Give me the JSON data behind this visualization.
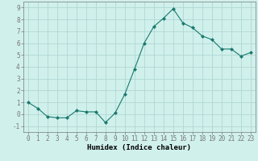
{
  "x": [
    0,
    1,
    2,
    3,
    4,
    5,
    6,
    7,
    8,
    9,
    10,
    11,
    12,
    13,
    14,
    15,
    16,
    17,
    18,
    19,
    20,
    21,
    22,
    23
  ],
  "y": [
    1.0,
    0.5,
    -0.2,
    -0.3,
    -0.3,
    0.3,
    0.2,
    0.2,
    -0.7,
    0.1,
    1.7,
    3.8,
    6.0,
    7.4,
    8.1,
    8.9,
    7.7,
    7.3,
    6.6,
    6.3,
    5.5,
    5.5,
    4.9,
    5.2
  ],
  "line_color": "#1a7a6e",
  "marker": "D",
  "marker_size": 2,
  "bg_color": "#d0f0ec",
  "grid_color": "#b0d8d4",
  "xlabel": "Humidex (Indice chaleur)",
  "xlim": [
    -0.5,
    23.5
  ],
  "ylim": [
    -1.5,
    9.5
  ],
  "xticks": [
    0,
    1,
    2,
    3,
    4,
    5,
    6,
    7,
    8,
    9,
    10,
    11,
    12,
    13,
    14,
    15,
    16,
    17,
    18,
    19,
    20,
    21,
    22,
    23
  ],
  "yticks": [
    -1,
    0,
    1,
    2,
    3,
    4,
    5,
    6,
    7,
    8,
    9
  ],
  "tick_label_fontsize": 5.5,
  "xlabel_fontsize": 6.5,
  "spine_color": "#777777",
  "linewidth": 0.8
}
